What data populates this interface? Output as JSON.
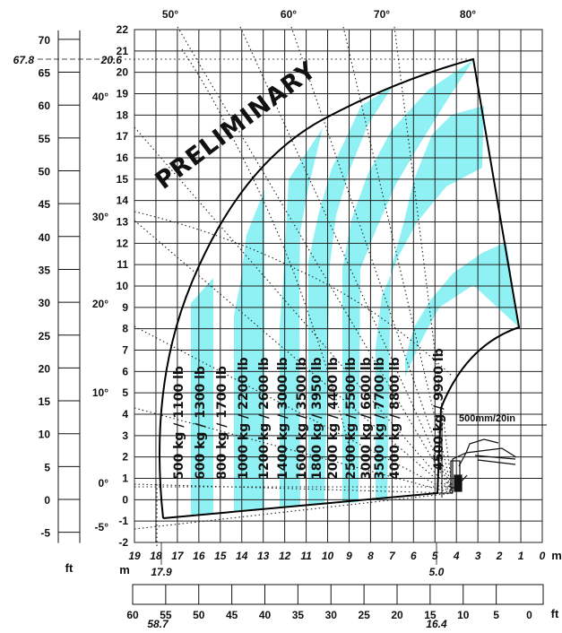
{
  "watermark": "PRELIMINARY",
  "units": {
    "ft_left": "ft",
    "m_right": "m",
    "m_left": "m",
    "ft_right": "ft"
  },
  "left_ft_ticks": [
    "70",
    "65",
    "60",
    "55",
    "50",
    "45",
    "40",
    "35",
    "30",
    "25",
    "20",
    "15",
    "10",
    "5",
    "0",
    "-5"
  ],
  "left_ft_values": [
    70,
    65,
    60,
    55,
    50,
    45,
    40,
    35,
    30,
    25,
    20,
    15,
    10,
    5,
    0,
    -5
  ],
  "height_m_ticks": [
    "22",
    "21",
    "20",
    "19",
    "18",
    "17",
    "16",
    "15",
    "14",
    "13",
    "12",
    "11",
    "10",
    "9",
    "8",
    "7",
    "6",
    "5",
    "4",
    "3",
    "2",
    "1",
    "0",
    "-1",
    "-2"
  ],
  "height_m_values": [
    22,
    21,
    20,
    19,
    18,
    17,
    16,
    15,
    14,
    13,
    12,
    11,
    10,
    9,
    8,
    7,
    6,
    5,
    4,
    3,
    2,
    1,
    0,
    -1,
    -2
  ],
  "reach_m_ticks": [
    "19",
    "18",
    "17",
    "16",
    "15",
    "14",
    "13",
    "12",
    "11",
    "10",
    "9",
    "8",
    "7",
    "6",
    "5",
    "4",
    "3",
    "2",
    "1",
    "0"
  ],
  "reach_m_values": [
    19,
    18,
    17,
    16,
    15,
    14,
    13,
    12,
    11,
    10,
    9,
    8,
    7,
    6,
    5,
    4,
    3,
    2,
    1,
    0
  ],
  "reach_ft_ticks": [
    "60",
    "55",
    "50",
    "45",
    "40",
    "35",
    "30",
    "25",
    "20",
    "15",
    "10",
    "5",
    "0"
  ],
  "reach_ft_values": [
    60,
    55,
    50,
    45,
    40,
    35,
    30,
    25,
    20,
    15,
    10,
    5,
    0
  ],
  "top_angles": [
    "50°",
    "60°",
    "70°",
    "80°"
  ],
  "side_angles": [
    "40°",
    "30°",
    "20°",
    "10°",
    "0°",
    "-5°"
  ],
  "marks": {
    "max_height_ft": "67.8",
    "max_height_m": "20.6",
    "max_reach_m": "17.9",
    "max_reach_ft": "58.7",
    "reach_at_4t_m": "5.0",
    "reach_at_4t_ft": "16.4"
  },
  "fork_note": "500mm/20in",
  "load_labels": [
    "500 kg / 1100 lb",
    "600 kg / 1300 lb",
    "800 kg / 1700 lb",
    "1000 kg / 2200 lb",
    "1200 kg / 2600 lb",
    "1400 kg / 3000 lb",
    "1600 kg / 3500 lb",
    "1800 kg / 3950 lb",
    "2000 kg / 4400 lb",
    "2500 kg / 5500 lb",
    "3000 kg / 6600 lb",
    "3500 kg / 7700 lb",
    "4000 kg / 8800 lb",
    "4500 kg / 9900 lb"
  ],
  "colors": {
    "zone": "#8ff1f4",
    "grid": "#222222",
    "envelope": "#000000"
  }
}
